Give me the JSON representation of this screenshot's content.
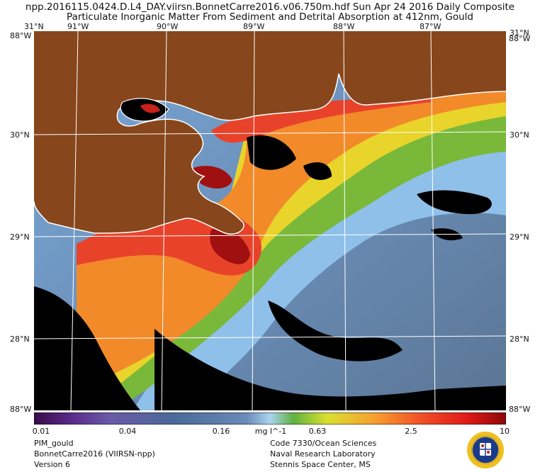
{
  "header": {
    "line1": "npp.2016115.0424.D.L4_DAY.viirsn.BonnetCarre2016.v06.750m.hdf     Sun Apr 24 2016 Daily Composite",
    "line2": "Particulate Inorganic Matter From Sediment and Detrital Absorption at 412nm, Gould"
  },
  "map": {
    "lon_top": [
      "91°W",
      "90°W",
      "89°W",
      "88°W",
      "87°W"
    ],
    "lon_top_corners": [
      "31°N",
      "31°N"
    ],
    "lat_left": [
      "30°N",
      "29°N",
      "28°N"
    ],
    "lat_right": [
      "30°N",
      "29°N",
      "28°N"
    ],
    "corner_tl": "88°W",
    "corner_tr": "88°W",
    "corner_bl": "88°W",
    "corner_br": "88°W",
    "colors": {
      "land": "#87461b",
      "coast": "#ffffff",
      "grid": "#ffffff",
      "nodata": "#000000"
    }
  },
  "colorbar": {
    "ticks": [
      "0.01",
      "0.04",
      "0.16",
      "0.63",
      "2.5",
      "10"
    ],
    "unit": "mg l^-1",
    "scale": "log"
  },
  "footer": {
    "left": [
      "PIM_gould",
      "BonnetCarre2016 (VIIRSN-npp)",
      "Version 6"
    ],
    "right": [
      "Code 7330/Ocean Sciences",
      "Naval Research Laboratory",
      "Stennis Space Center, MS"
    ]
  }
}
